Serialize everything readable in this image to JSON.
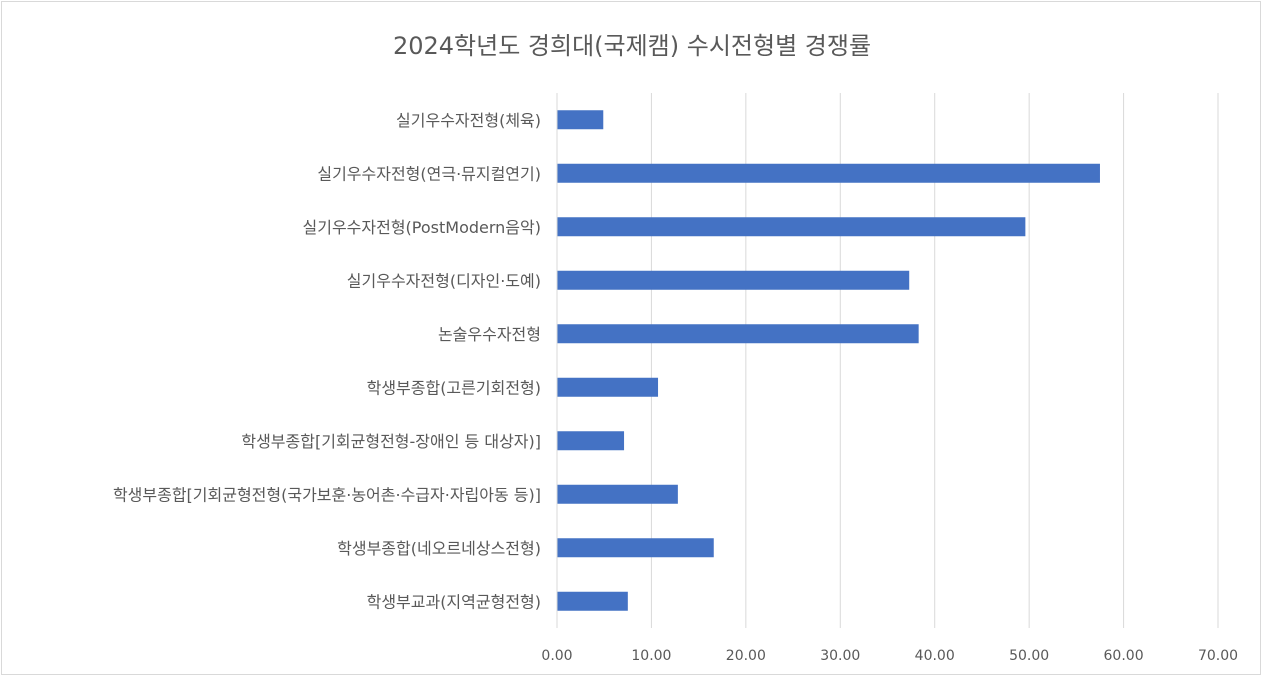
{
  "chart_data": {
    "type": "bar",
    "orientation": "horizontal",
    "title": "2024학년도 경희대(국제캠) 수시전형별 경쟁률",
    "xlabel": "",
    "ylabel": "",
    "xlim": [
      0,
      70
    ],
    "grid": true,
    "legend": "none",
    "bar_color": "#4472c4",
    "tick_labels": [
      "0.00",
      "10.00",
      "20.00",
      "30.00",
      "40.00",
      "50.00",
      "60.00",
      "70.00"
    ],
    "categories": [
      "실기우수자전형(체육)",
      "실기우수자전형(연극·뮤지컬연기)",
      "실기우수자전형(PostModern음악)",
      "실기우수자전형(디자인·도예)",
      "논술우수자전형",
      "학생부종합(고른기회전형)",
      "학생부종합[기회균형전형-장애인 등 대상자)]",
      "학생부종합[기회균형전형(국가보훈·농어촌·수급자·자립아동 등)]",
      "학생부종합(네오르네상스전형)",
      "학생부교과(지역균형전형)"
    ],
    "values": [
      4.9,
      57.5,
      49.6,
      37.3,
      38.3,
      10.7,
      7.1,
      12.8,
      16.6,
      7.5
    ]
  }
}
